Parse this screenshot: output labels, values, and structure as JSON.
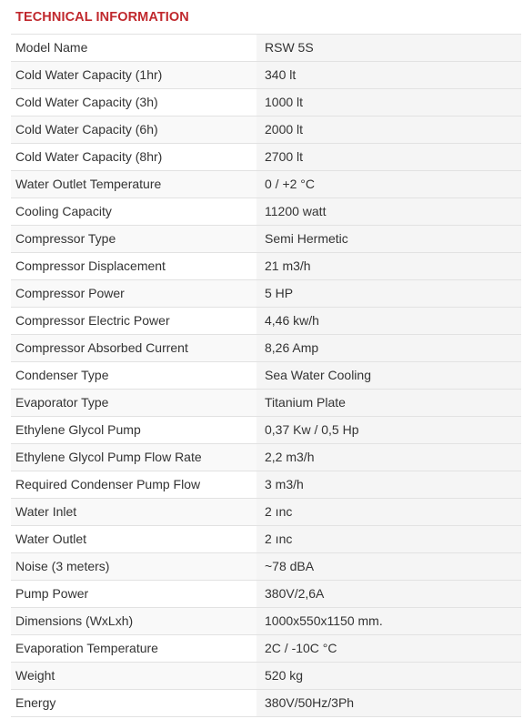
{
  "heading": "TECHNICAL INFORMATION",
  "specs": [
    {
      "label": "Model Name",
      "value": "RSW 5S"
    },
    {
      "label": "Cold Water Capacity (1hr)",
      "value": "340 lt"
    },
    {
      "label": "Cold Water Capacity (3h)",
      "value": "1000 lt"
    },
    {
      "label": "Cold Water Capacity (6h)",
      "value": "2000 lt"
    },
    {
      "label": "Cold Water Capacity (8hr)",
      "value": "2700 lt"
    },
    {
      "label": "Water Outlet Temperature",
      "value": "0 / +2 °C"
    },
    {
      "label": "Cooling Capacity",
      "value": "11200 watt"
    },
    {
      "label": "Compressor Type",
      "value": "Semi Hermetic"
    },
    {
      "label": "Compressor Displacement",
      "value": "21 m3/h"
    },
    {
      "label": "Compressor Power",
      "value": "5 HP"
    },
    {
      "label": "Compressor Electric Power",
      "value": "4,46 kw/h"
    },
    {
      "label": "Compressor Absorbed Current",
      "value": "8,26 Amp"
    },
    {
      "label": "Condenser Type",
      "value": "Sea Water Cooling"
    },
    {
      "label": "Evaporator Type",
      "value": "Titanium Plate"
    },
    {
      "label": "Ethylene Glycol Pump",
      "value": "0,37 Kw / 0,5 Hp"
    },
    {
      "label": "Ethylene Glycol Pump Flow Rate",
      "value": "2,2 m3/h"
    },
    {
      "label": "Required Condenser Pump Flow",
      "value": "3 m3/h"
    },
    {
      "label": "Water Inlet",
      "value": "2 ınc"
    },
    {
      "label": "Water Outlet",
      "value": "2 ınc"
    },
    {
      "label": "Noise (3 meters)",
      "value": "~78 dBA"
    },
    {
      "label": "Pump Power",
      "value": "380V/2,6A"
    },
    {
      "label": "Dimensions (WxLxh)",
      "value": "1000x550x1150 mm."
    },
    {
      "label": "Evaporation Temperature",
      "value": "2C / -10C °C"
    },
    {
      "label": "Weight",
      "value": "520 kg"
    },
    {
      "label": "Energy",
      "value": "380V/50Hz/3Ph"
    }
  ]
}
